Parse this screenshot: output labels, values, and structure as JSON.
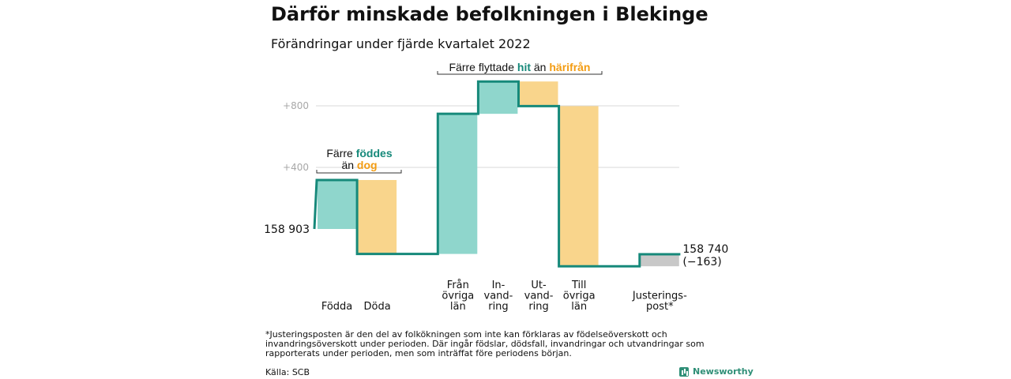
{
  "title": "Därför minskade befolkningen i Blekinge",
  "subtitle": "Förändringar under fjärde kvartalet 2022",
  "footnote": "*Justeringsposten är den del av folkökningen som inte kan förklaras av födelseöverskott och invandringsöverskott under perioden. Där ingår födslar, dödsfall, invandringar och utvandringar som rapporterats under perioden, men som inträffat före periodens början.",
  "source": "Källa: SCB",
  "brand": "Newsworthy",
  "colors": {
    "increase": "#8fd6cc",
    "decrease": "#f9d58c",
    "adjustment": "#c8c8c8",
    "line": "#16897a",
    "teal_text": "#16897a",
    "orange_text": "#f39c12",
    "grid": "#d9d9d9",
    "tick": "#a8a8a8"
  },
  "chart_data": {
    "type": "waterfall",
    "baseline": 0,
    "y_ticks": [
      "+400",
      "+800"
    ],
    "y_tick_values": [
      400,
      800
    ],
    "start_label": "158 903",
    "end_label_line1": "158 740",
    "end_label_line2": "(−163)",
    "steps": [
      {
        "label_lines": [
          "Födda"
        ],
        "change": 318,
        "kind": "increase"
      },
      {
        "label_lines": [
          "Döda"
        ],
        "change": -480,
        "kind": "decrease"
      },
      {
        "label_lines": [
          ""
        ],
        "change": 0,
        "kind": "gap"
      },
      {
        "label_lines": [
          "Från",
          "övriga",
          "län"
        ],
        "change": 910,
        "kind": "increase"
      },
      {
        "label_lines": [
          "In-",
          "vand-",
          "ring"
        ],
        "change": 210,
        "kind": "increase"
      },
      {
        "label_lines": [
          "Ut-",
          "vand-",
          "ring"
        ],
        "change": -160,
        "kind": "decrease"
      },
      {
        "label_lines": [
          "Till",
          "övriga",
          "län"
        ],
        "change": -1040,
        "kind": "decrease"
      },
      {
        "label_lines": [
          ""
        ],
        "change": 0,
        "kind": "gap"
      },
      {
        "label_lines": [
          "Justerings-",
          "post*"
        ],
        "change": 78,
        "kind": "adjustment"
      }
    ],
    "annotations": [
      {
        "name": "births-deaths",
        "line1_parts": [
          "Färre ",
          "föddes"
        ],
        "line2_parts": [
          "än ",
          "dog"
        ]
      },
      {
        "name": "migration",
        "line1_parts": [
          "Färre flyttade ",
          "hit",
          " än ",
          "härifrån"
        ]
      }
    ]
  }
}
